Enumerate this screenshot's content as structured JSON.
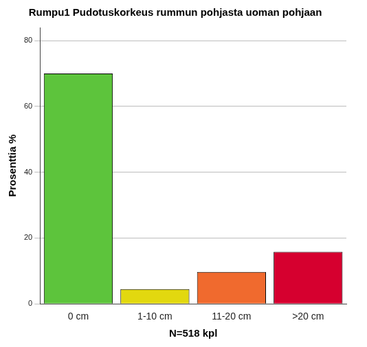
{
  "chart_data": {
    "type": "bar",
    "title": "Rumpu1 Pudotuskorkeus rummun pohjasta uoman pohjaan",
    "x_label": "N=518 kpl",
    "y_label": "Prosenttia %",
    "categories": [
      "0 cm",
      "1-10 cm",
      "11-20 cm",
      ">20 cm"
    ],
    "values": [
      70.0,
      4.5,
      9.7,
      15.8
    ],
    "colors": [
      "#5dc43c",
      "#e2d80f",
      "#f06a2e",
      "#d6002f"
    ],
    "ylim": [
      0,
      84
    ],
    "yticks": [
      0,
      20,
      40,
      60,
      80
    ],
    "grid": true
  }
}
